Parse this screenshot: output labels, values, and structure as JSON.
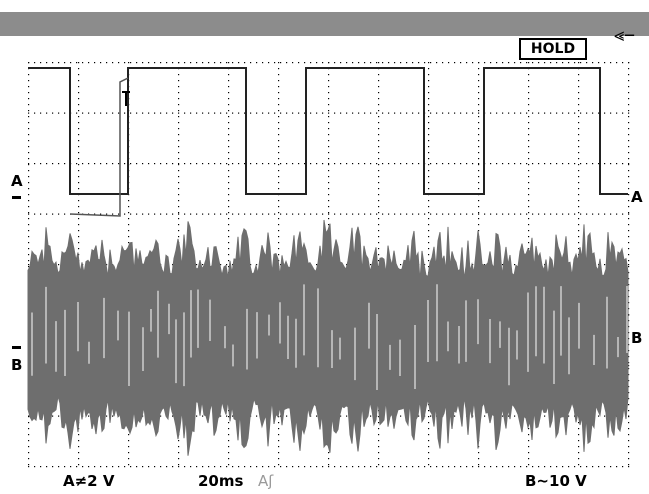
{
  "header": {
    "power_icon": "plug-icon",
    "hold_label": "HOLD"
  },
  "channels": {
    "a_left_marker": "A",
    "a_right_marker": "A",
    "b_left_marker": "B",
    "b_right_marker": "B"
  },
  "status": {
    "channel_a_scale": "A≠2 V",
    "timebase": "20ms",
    "trigger_mode": "Aʃ",
    "channel_b_scale": "B~10 V"
  },
  "colors": {
    "top_bar": "#8c8c8c",
    "trace_b": "#6e6e6e",
    "trace_a": "#222222",
    "grid": "#000000"
  }
}
